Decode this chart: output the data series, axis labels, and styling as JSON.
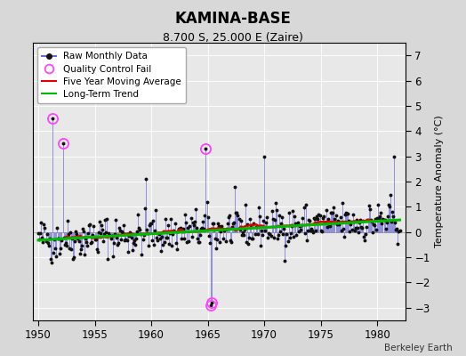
{
  "title": "KAMINA-BASE",
  "subtitle": "8.700 S, 25.000 E (Zaire)",
  "credit": "Berkeley Earth",
  "ylabel": "Temperature Anomaly (°C)",
  "xlim": [
    1949.5,
    1982.5
  ],
  "ylim": [
    -3.5,
    7.5
  ],
  "yticks": [
    -3,
    -2,
    -1,
    0,
    1,
    2,
    3,
    4,
    5,
    6,
    7
  ],
  "xticks": [
    1950,
    1955,
    1960,
    1965,
    1970,
    1975,
    1980
  ],
  "background_color": "#d8d8d8",
  "plot_bg_color": "#e8e8e8",
  "raw_color": "#6666dd",
  "dot_color": "#111111",
  "qc_color": "#ff44ff",
  "moving_avg_color": "#dd0000",
  "trend_color": "#00bb00",
  "trend_slope": 0.025,
  "trend_intercept": -0.32,
  "noise_scale": 0.55,
  "seed": 42
}
